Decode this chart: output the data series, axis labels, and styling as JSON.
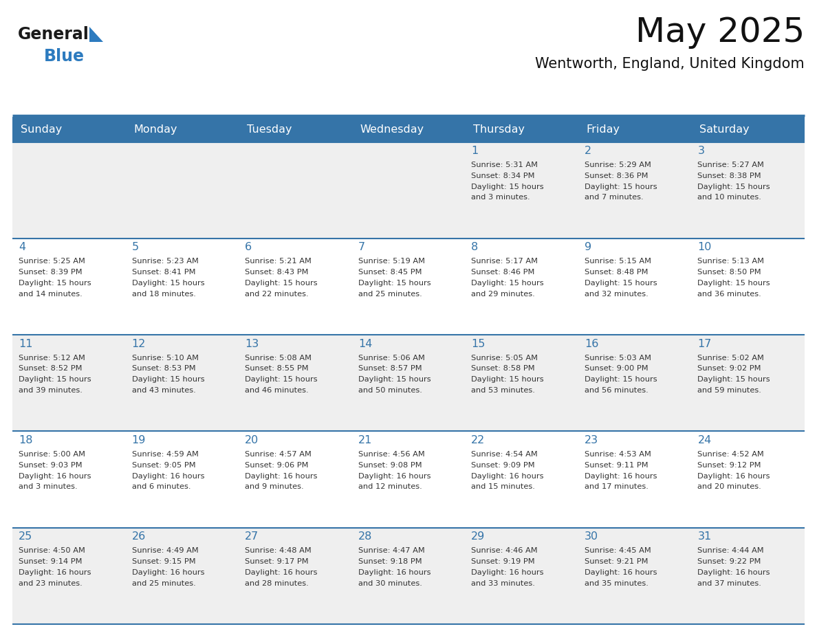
{
  "title": "May 2025",
  "subtitle": "Wentworth, England, United Kingdom",
  "header_bg_color": "#3574a8",
  "header_text_color": "#ffffff",
  "row_bg_even": "#efefef",
  "row_bg_odd": "#ffffff",
  "day_number_color": "#3574a8",
  "text_color": "#333333",
  "separator_color": "#3574a8",
  "days_of_week": [
    "Sunday",
    "Monday",
    "Tuesday",
    "Wednesday",
    "Thursday",
    "Friday",
    "Saturday"
  ],
  "calendar_data": [
    [
      {
        "day": "",
        "sunrise": "",
        "sunset": "",
        "daylight": ""
      },
      {
        "day": "",
        "sunrise": "",
        "sunset": "",
        "daylight": ""
      },
      {
        "day": "",
        "sunrise": "",
        "sunset": "",
        "daylight": ""
      },
      {
        "day": "",
        "sunrise": "",
        "sunset": "",
        "daylight": ""
      },
      {
        "day": "1",
        "sunrise": "5:31 AM",
        "sunset": "8:34 PM",
        "daylight": "15 hours and 3 minutes."
      },
      {
        "day": "2",
        "sunrise": "5:29 AM",
        "sunset": "8:36 PM",
        "daylight": "15 hours and 7 minutes."
      },
      {
        "day": "3",
        "sunrise": "5:27 AM",
        "sunset": "8:38 PM",
        "daylight": "15 hours and 10 minutes."
      }
    ],
    [
      {
        "day": "4",
        "sunrise": "5:25 AM",
        "sunset": "8:39 PM",
        "daylight": "15 hours and 14 minutes."
      },
      {
        "day": "5",
        "sunrise": "5:23 AM",
        "sunset": "8:41 PM",
        "daylight": "15 hours and 18 minutes."
      },
      {
        "day": "6",
        "sunrise": "5:21 AM",
        "sunset": "8:43 PM",
        "daylight": "15 hours and 22 minutes."
      },
      {
        "day": "7",
        "sunrise": "5:19 AM",
        "sunset": "8:45 PM",
        "daylight": "15 hours and 25 minutes."
      },
      {
        "day": "8",
        "sunrise": "5:17 AM",
        "sunset": "8:46 PM",
        "daylight": "15 hours and 29 minutes."
      },
      {
        "day": "9",
        "sunrise": "5:15 AM",
        "sunset": "8:48 PM",
        "daylight": "15 hours and 32 minutes."
      },
      {
        "day": "10",
        "sunrise": "5:13 AM",
        "sunset": "8:50 PM",
        "daylight": "15 hours and 36 minutes."
      }
    ],
    [
      {
        "day": "11",
        "sunrise": "5:12 AM",
        "sunset": "8:52 PM",
        "daylight": "15 hours and 39 minutes."
      },
      {
        "day": "12",
        "sunrise": "5:10 AM",
        "sunset": "8:53 PM",
        "daylight": "15 hours and 43 minutes."
      },
      {
        "day": "13",
        "sunrise": "5:08 AM",
        "sunset": "8:55 PM",
        "daylight": "15 hours and 46 minutes."
      },
      {
        "day": "14",
        "sunrise": "5:06 AM",
        "sunset": "8:57 PM",
        "daylight": "15 hours and 50 minutes."
      },
      {
        "day": "15",
        "sunrise": "5:05 AM",
        "sunset": "8:58 PM",
        "daylight": "15 hours and 53 minutes."
      },
      {
        "day": "16",
        "sunrise": "5:03 AM",
        "sunset": "9:00 PM",
        "daylight": "15 hours and 56 minutes."
      },
      {
        "day": "17",
        "sunrise": "5:02 AM",
        "sunset": "9:02 PM",
        "daylight": "15 hours and 59 minutes."
      }
    ],
    [
      {
        "day": "18",
        "sunrise": "5:00 AM",
        "sunset": "9:03 PM",
        "daylight": "16 hours and 3 minutes."
      },
      {
        "day": "19",
        "sunrise": "4:59 AM",
        "sunset": "9:05 PM",
        "daylight": "16 hours and 6 minutes."
      },
      {
        "day": "20",
        "sunrise": "4:57 AM",
        "sunset": "9:06 PM",
        "daylight": "16 hours and 9 minutes."
      },
      {
        "day": "21",
        "sunrise": "4:56 AM",
        "sunset": "9:08 PM",
        "daylight": "16 hours and 12 minutes."
      },
      {
        "day": "22",
        "sunrise": "4:54 AM",
        "sunset": "9:09 PM",
        "daylight": "16 hours and 15 minutes."
      },
      {
        "day": "23",
        "sunrise": "4:53 AM",
        "sunset": "9:11 PM",
        "daylight": "16 hours and 17 minutes."
      },
      {
        "day": "24",
        "sunrise": "4:52 AM",
        "sunset": "9:12 PM",
        "daylight": "16 hours and 20 minutes."
      }
    ],
    [
      {
        "day": "25",
        "sunrise": "4:50 AM",
        "sunset": "9:14 PM",
        "daylight": "16 hours and 23 minutes."
      },
      {
        "day": "26",
        "sunrise": "4:49 AM",
        "sunset": "9:15 PM",
        "daylight": "16 hours and 25 minutes."
      },
      {
        "day": "27",
        "sunrise": "4:48 AM",
        "sunset": "9:17 PM",
        "daylight": "16 hours and 28 minutes."
      },
      {
        "day": "28",
        "sunrise": "4:47 AM",
        "sunset": "9:18 PM",
        "daylight": "16 hours and 30 minutes."
      },
      {
        "day": "29",
        "sunrise": "4:46 AM",
        "sunset": "9:19 PM",
        "daylight": "16 hours and 33 minutes."
      },
      {
        "day": "30",
        "sunrise": "4:45 AM",
        "sunset": "9:21 PM",
        "daylight": "16 hours and 35 minutes."
      },
      {
        "day": "31",
        "sunrise": "4:44 AM",
        "sunset": "9:22 PM",
        "daylight": "16 hours and 37 minutes."
      }
    ]
  ],
  "logo_general_color": "#1a1a1a",
  "logo_blue_color": "#2d7bbf",
  "logo_triangle_color": "#2d7bbf",
  "title_fontsize": 36,
  "subtitle_fontsize": 15,
  "header_fontsize": 11.5,
  "day_number_fontsize": 11.5,
  "cell_text_fontsize": 8.2
}
